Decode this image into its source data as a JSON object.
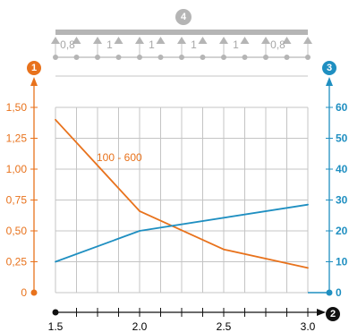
{
  "colors": {
    "left_axis": "#e8721c",
    "right_axis": "#1f8fc1",
    "x_axis": "#111111",
    "beam": "#b5b5b5",
    "grid": "#c4c4c4"
  },
  "badges": {
    "left_axis": "1",
    "x_axis": "2",
    "right_axis": "3",
    "beam": "4"
  },
  "beam": {
    "spans": [
      "0,8",
      "1",
      "1",
      "1",
      "1",
      "0,8"
    ]
  },
  "chart_data": {
    "type": "line",
    "x_axis": {
      "range": [
        1.5,
        3.0
      ],
      "ticks": [
        1.5,
        2.0,
        2.5,
        3.0
      ],
      "tick_labels": [
        "1.5",
        "2.0",
        "2.5",
        "3.0"
      ]
    },
    "y_left": {
      "range": [
        0,
        1.5
      ],
      "ticks": [
        0,
        0.25,
        0.5,
        0.75,
        1.0,
        1.25,
        1.5
      ],
      "tick_labels": [
        "0",
        "0,25",
        "0,50",
        "0,75",
        "1,00",
        "1,25",
        "1,50"
      ]
    },
    "y_right": {
      "range": [
        0,
        60
      ],
      "ticks": [
        0,
        10,
        20,
        30,
        40,
        50,
        60
      ],
      "tick_labels": [
        "0",
        "10",
        "20",
        "30",
        "40",
        "50",
        "60"
      ]
    },
    "grid": true,
    "series": [
      {
        "name": "100 - 600",
        "axis": "left",
        "color": "#e8721c",
        "x": [
          1.5,
          2.0,
          2.5,
          3.0
        ],
        "y": [
          1.4,
          0.66,
          0.35,
          0.2
        ]
      },
      {
        "axis": "right",
        "color": "#1f8fc1",
        "x": [
          1.5,
          2.0,
          3.0
        ],
        "y": [
          10,
          20,
          28.5
        ]
      }
    ]
  }
}
